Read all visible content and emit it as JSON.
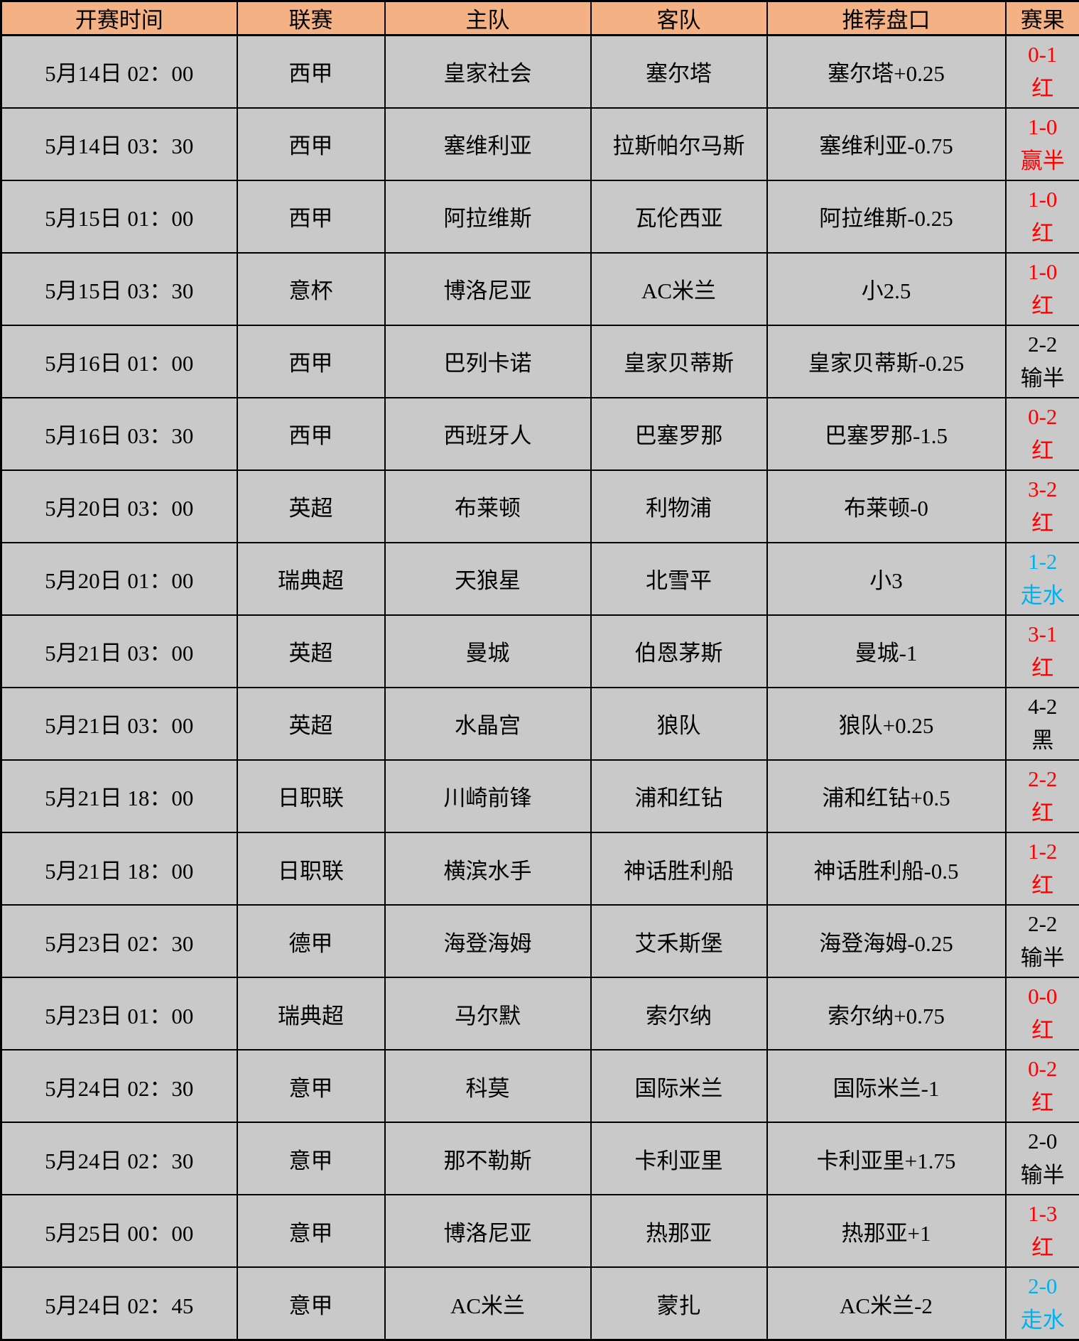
{
  "table": {
    "columns": [
      "开赛时间",
      "联赛",
      "主队",
      "客队",
      "推荐盘口",
      "赛果"
    ],
    "rows": [
      {
        "time": "5月14日 02：00",
        "league": "西甲",
        "home": "皇家社会",
        "away": "塞尔塔",
        "handicap": "塞尔塔+0.25",
        "score": "0-1",
        "outcome": "红",
        "result_color": "red"
      },
      {
        "time": "5月14日 03：30",
        "league": "西甲",
        "home": "塞维利亚",
        "away": "拉斯帕尔马斯",
        "handicap": "塞维利亚-0.75",
        "score": "1-0",
        "outcome": "赢半",
        "result_color": "red"
      },
      {
        "time": "5月15日 01：00",
        "league": "西甲",
        "home": "阿拉维斯",
        "away": "瓦伦西亚",
        "handicap": "阿拉维斯-0.25",
        "score": "1-0",
        "outcome": "红",
        "result_color": "red"
      },
      {
        "time": "5月15日 03：30",
        "league": "意杯",
        "home": "博洛尼亚",
        "away": "AC米兰",
        "handicap": "小2.5",
        "score": "1-0",
        "outcome": "红",
        "result_color": "red"
      },
      {
        "time": "5月16日 01：00",
        "league": "西甲",
        "home": "巴列卡诺",
        "away": "皇家贝蒂斯",
        "handicap": "皇家贝蒂斯-0.25",
        "score": "2-2",
        "outcome": "输半",
        "result_color": "black"
      },
      {
        "time": "5月16日 03：30",
        "league": "西甲",
        "home": "西班牙人",
        "away": "巴塞罗那",
        "handicap": "巴塞罗那-1.5",
        "score": "0-2",
        "outcome": "红",
        "result_color": "red"
      },
      {
        "time": "5月20日 03：00",
        "league": "英超",
        "home": "布莱顿",
        "away": "利物浦",
        "handicap": "布莱顿-0",
        "score": "3-2",
        "outcome": "红",
        "result_color": "red"
      },
      {
        "time": "5月20日 01：00",
        "league": "瑞典超",
        "home": "天狼星",
        "away": "北雪平",
        "handicap": "小3",
        "score": "1-2",
        "outcome": "走水",
        "result_color": "blue"
      },
      {
        "time": "5月21日 03：00",
        "league": "英超",
        "home": "曼城",
        "away": "伯恩茅斯",
        "handicap": "曼城-1",
        "score": "3-1",
        "outcome": "红",
        "result_color": "red"
      },
      {
        "time": "5月21日 03：00",
        "league": "英超",
        "home": "水晶宫",
        "away": "狼队",
        "handicap": "狼队+0.25",
        "score": "4-2",
        "outcome": "黑",
        "result_color": "black"
      },
      {
        "time": "5月21日 18：00",
        "league": "日职联",
        "home": "川崎前锋",
        "away": "浦和红钻",
        "handicap": "浦和红钻+0.5",
        "score": "2-2",
        "outcome": "红",
        "result_color": "red"
      },
      {
        "time": "5月21日 18：00",
        "league": "日职联",
        "home": "横滨水手",
        "away": "神话胜利船",
        "handicap": "神话胜利船-0.5",
        "score": "1-2",
        "outcome": "红",
        "result_color": "red"
      },
      {
        "time": "5月23日 02：30",
        "league": "德甲",
        "home": "海登海姆",
        "away": "艾禾斯堡",
        "handicap": "海登海姆-0.25",
        "score": "2-2",
        "outcome": "输半",
        "result_color": "black"
      },
      {
        "time": "5月23日 01：00",
        "league": "瑞典超",
        "home": "马尔默",
        "away": "索尔纳",
        "handicap": "索尔纳+0.75",
        "score": "0-0",
        "outcome": "红",
        "result_color": "red"
      },
      {
        "time": "5月24日 02：30",
        "league": "意甲",
        "home": "科莫",
        "away": "国际米兰",
        "handicap": "国际米兰-1",
        "score": "0-2",
        "outcome": "红",
        "result_color": "red"
      },
      {
        "time": "5月24日 02：30",
        "league": "意甲",
        "home": "那不勒斯",
        "away": "卡利亚里",
        "handicap": "卡利亚里+1.75",
        "score": "2-0",
        "outcome": "输半",
        "result_color": "black"
      },
      {
        "time": "5月25日 00：00",
        "league": "意甲",
        "home": "博洛尼亚",
        "away": "热那亚",
        "handicap": "热那亚+1",
        "score": "1-3",
        "outcome": "红",
        "result_color": "red"
      },
      {
        "time": "5月24日 02：45",
        "league": "意甲",
        "home": "AC米兰",
        "away": "蒙扎",
        "handicap": "AC米兰-2",
        "score": "2-0",
        "outcome": "走水",
        "result_color": "blue"
      }
    ]
  },
  "colors": {
    "header_bg": "#F4B183",
    "cell_bg": "#C9C9C9",
    "border": "#000000",
    "red": "#FF0000",
    "black": "#000000",
    "blue": "#00B0F0"
  }
}
